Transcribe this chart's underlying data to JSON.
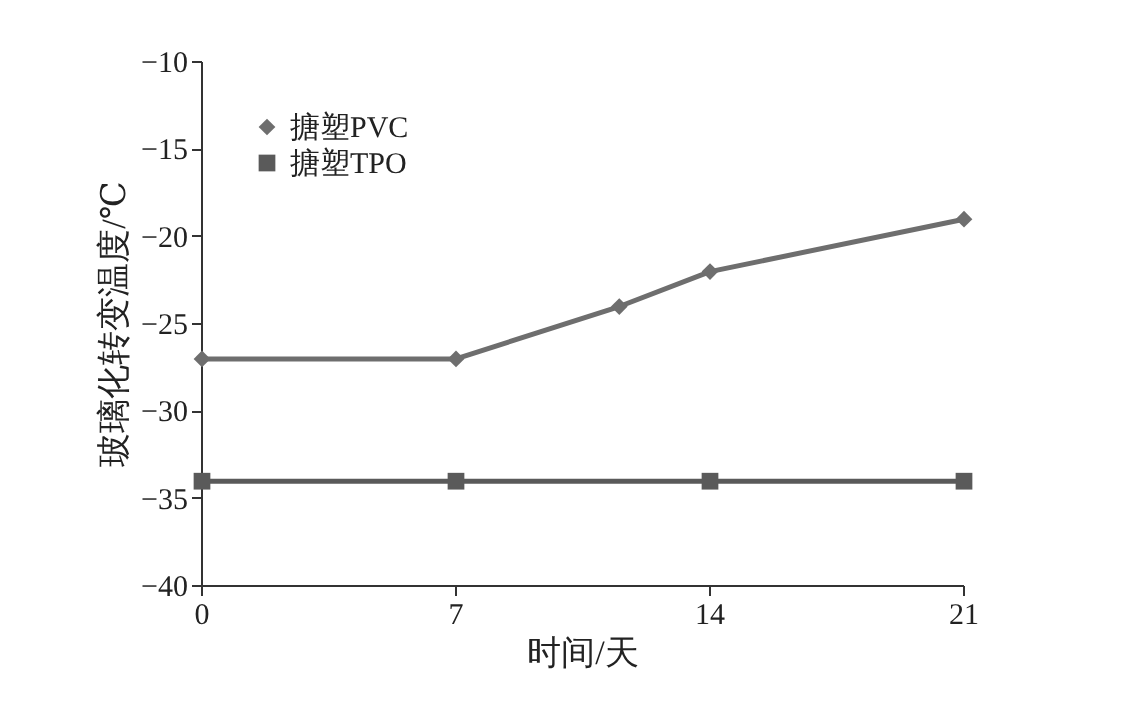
{
  "chart_data": {
    "type": "line",
    "xlabel": "时间/天",
    "ylabel": "玻璃化转变温度/℃",
    "xlim": [
      0,
      21
    ],
    "xticks": [
      0,
      7,
      14,
      21
    ],
    "ylim": [
      -40,
      -10
    ],
    "yticks": [
      -40,
      -35,
      -30,
      -25,
      -20,
      -15,
      -10
    ],
    "grid": false,
    "legend": "top left",
    "series": [
      {
        "name": "搪塑PVC",
        "color": "#6e6e6e",
        "marker": "diamond",
        "x": [
          0,
          7,
          11.5,
          14,
          21
        ],
        "values": [
          -27,
          -27,
          -24,
          -22,
          -19
        ]
      },
      {
        "name": "搪塑TPO",
        "color": "#5a5a5a",
        "marker": "square",
        "x": [
          0,
          7,
          14,
          21
        ],
        "values": [
          -34,
          -34,
          -34,
          -34
        ]
      }
    ]
  }
}
